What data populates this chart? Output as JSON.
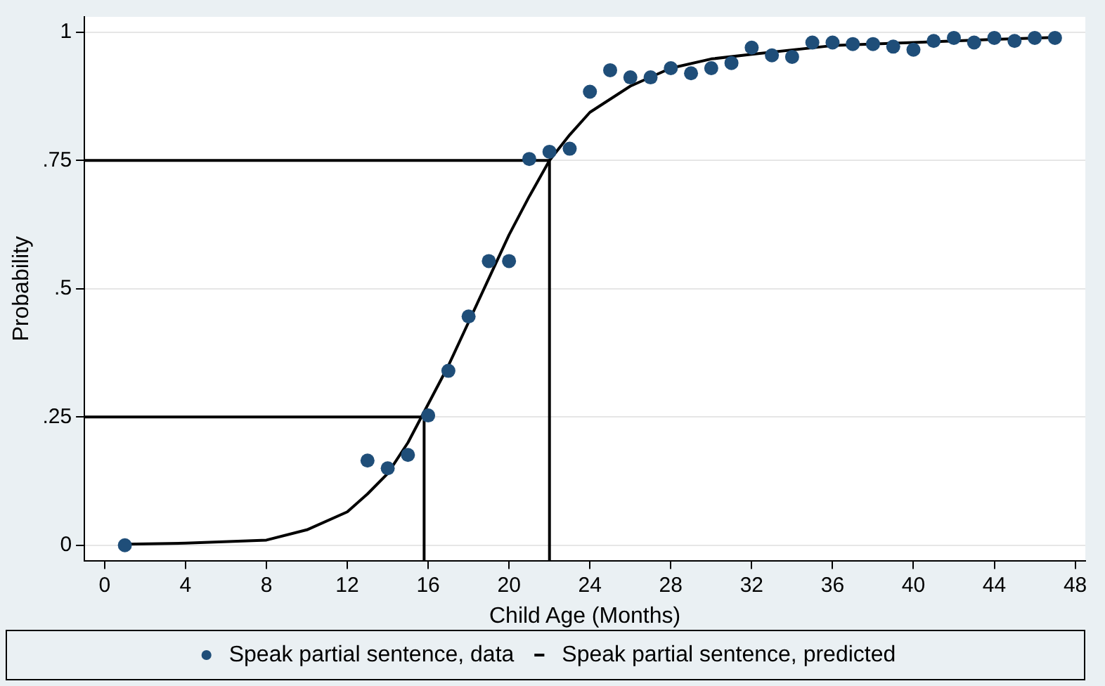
{
  "chart_data": {
    "type": "scatter",
    "xlabel": "Child Age (Months)",
    "ylabel": "Probability",
    "xlim": [
      -1,
      48.5
    ],
    "xticks": [
      0,
      4,
      8,
      12,
      16,
      20,
      24,
      28,
      32,
      36,
      40,
      44,
      48
    ],
    "ylim": [
      -0.03,
      1.03
    ],
    "yticks": [
      {
        "value": 0,
        "label": "0"
      },
      {
        "value": 0.25,
        "label": ".25"
      },
      {
        "value": 0.5,
        "label": ".5"
      },
      {
        "value": 0.75,
        "label": ".75"
      },
      {
        "value": 1,
        "label": "1"
      }
    ],
    "grid": "y",
    "legend": "bottom",
    "marker": "circle",
    "series": [
      {
        "name": "Speak partial sentence, data",
        "color": "#1f4e79",
        "x": [
          1,
          13,
          14,
          15,
          16,
          17,
          18,
          19,
          20,
          21,
          22,
          23,
          24,
          25,
          26,
          27,
          28,
          29,
          30,
          31,
          32,
          33,
          34,
          35,
          36,
          37,
          38,
          39,
          40,
          41,
          42,
          43,
          44,
          45,
          46,
          47
        ],
        "values": [
          0,
          0.165,
          0.15,
          0.176,
          0.253,
          0.34,
          0.446,
          0.554,
          0.554,
          0.753,
          0.767,
          0.773,
          0.884,
          0.926,
          0.912,
          0.912,
          0.93,
          0.92,
          0.93,
          0.94,
          0.97,
          0.955,
          0.952,
          0.98,
          0.98,
          0.977,
          0.977,
          0.972,
          0.966,
          0.983,
          0.989,
          0.98,
          0.989,
          0.983,
          0.989,
          0.989
        ]
      },
      {
        "name": "Speak partial sentence, predicted",
        "type": "line",
        "color": "#000000",
        "marker": "none",
        "x": [
          1,
          4,
          8,
          10,
          12,
          13,
          14,
          15,
          16,
          17,
          18,
          19,
          20,
          21,
          22,
          23,
          24,
          26,
          28,
          30,
          32,
          36,
          40,
          44,
          47
        ],
        "values": [
          0.002,
          0.004,
          0.01,
          0.03,
          0.065,
          0.1,
          0.14,
          0.2,
          0.275,
          0.35,
          0.435,
          0.52,
          0.605,
          0.68,
          0.75,
          0.8,
          0.844,
          0.895,
          0.93,
          0.948,
          0.957,
          0.974,
          0.98,
          0.986,
          0.99
        ]
      },
      {
        "type": "line",
        "color": "#000000",
        "marker": "none",
        "x": [
          -1,
          15.8,
          15.8
        ],
        "values": [
          0.25,
          0.25,
          -0.03
        ]
      },
      {
        "type": "line",
        "color": "#000000",
        "marker": "none",
        "x": [
          -1,
          22,
          22
        ],
        "values": [
          0.75,
          0.75,
          -0.03
        ]
      }
    ]
  }
}
